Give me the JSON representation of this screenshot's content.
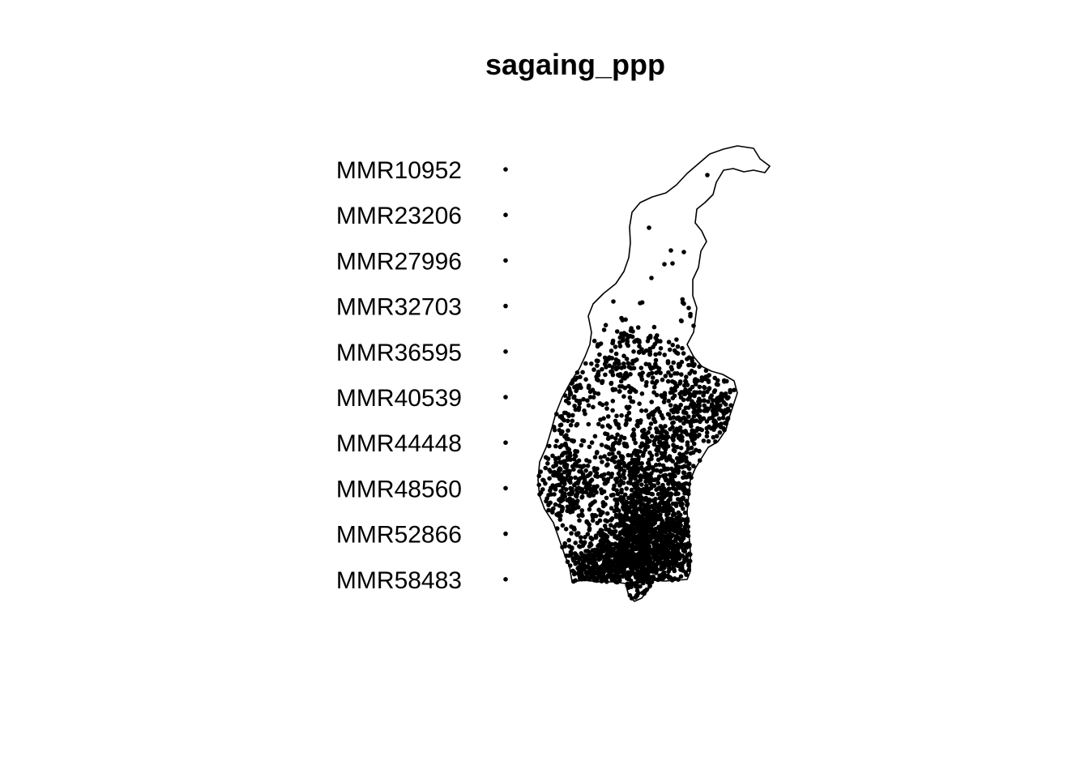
{
  "title": "sagaing_ppp",
  "legend": {
    "entries": [
      "MMR10952",
      "MMR23206",
      "MMR27996",
      "MMR32703",
      "MMR36595",
      "MMR40539",
      "MMR44448",
      "MMR48560",
      "MMR52866",
      "MMR58483"
    ]
  },
  "colors": {
    "point": "#000000",
    "boundary": "#000000",
    "background": "#ffffff"
  }
}
